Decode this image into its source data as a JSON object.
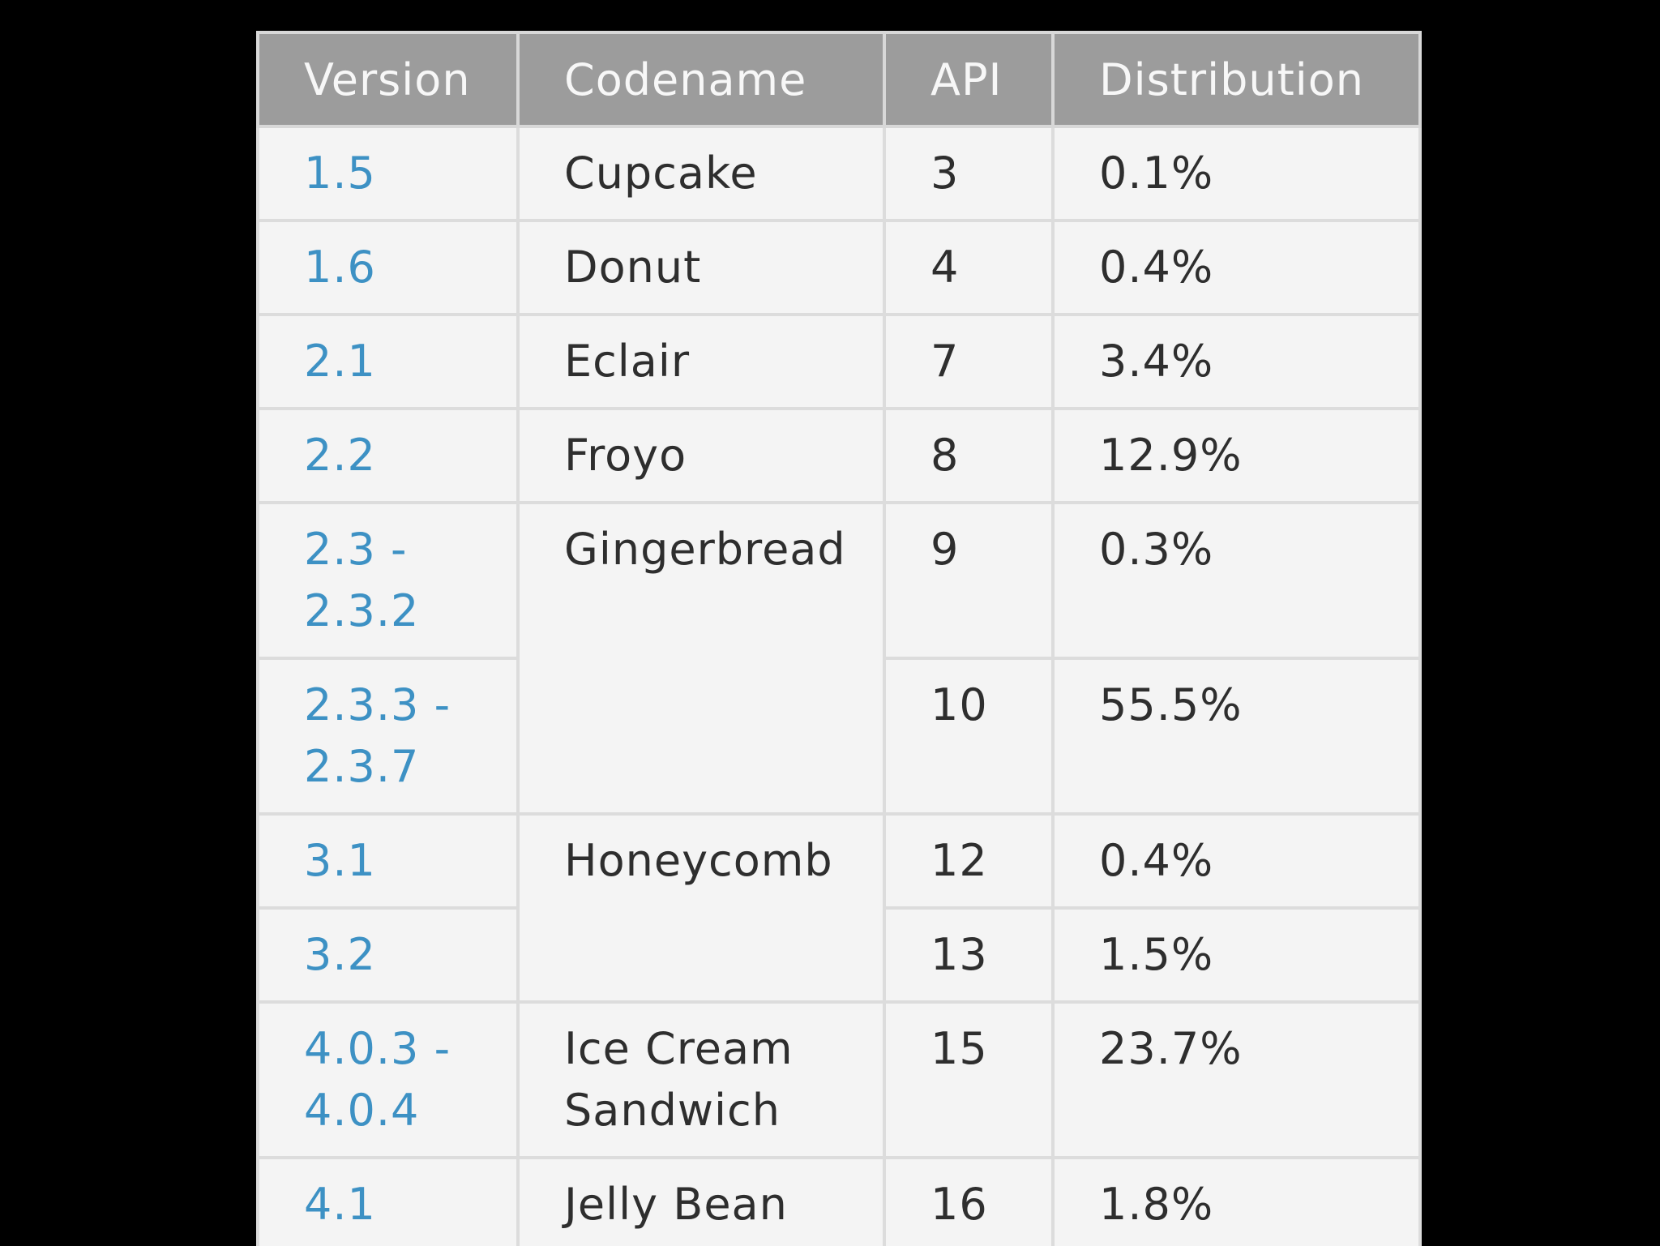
{
  "colors": {
    "background": "#000000",
    "header_bg": "#9c9c9c",
    "header_text": "#f7f7f7",
    "cell_bg": "#f4f4f4",
    "version_link": "#3d91c4",
    "text": "#2e2e2e"
  },
  "headers": [
    "Version",
    "Codename",
    "API",
    "Distribution"
  ],
  "rows": [
    {
      "version": "1.5",
      "codename": "Cupcake",
      "api": "3",
      "distribution": "0.1%"
    },
    {
      "version": "1.6",
      "codename": "Donut",
      "api": "4",
      "distribution": "0.4%"
    },
    {
      "version": "2.1",
      "codename": "Eclair",
      "api": "7",
      "distribution": "3.4%"
    },
    {
      "version": "2.2",
      "codename": "Froyo",
      "api": "8",
      "distribution": "12.9%"
    },
    {
      "version": "2.3 - 2.3.2",
      "codename": "Gingerbread",
      "api": "9",
      "distribution": "0.3%"
    },
    {
      "version": "2.3.3 - 2.3.7",
      "api": "10",
      "distribution": "55.5%"
    },
    {
      "version": "3.1",
      "codename": "Honeycomb",
      "api": "12",
      "distribution": "0.4%"
    },
    {
      "version": "3.2",
      "api": "13",
      "distribution": "1.5%"
    },
    {
      "version": "4.0.3 - 4.0.4",
      "codename": "Ice Cream Sandwich",
      "api": "15",
      "distribution": "23.7%"
    },
    {
      "version": "4.1",
      "codename": "Jelly Bean",
      "api": "16",
      "distribution": "1.8%"
    }
  ]
}
